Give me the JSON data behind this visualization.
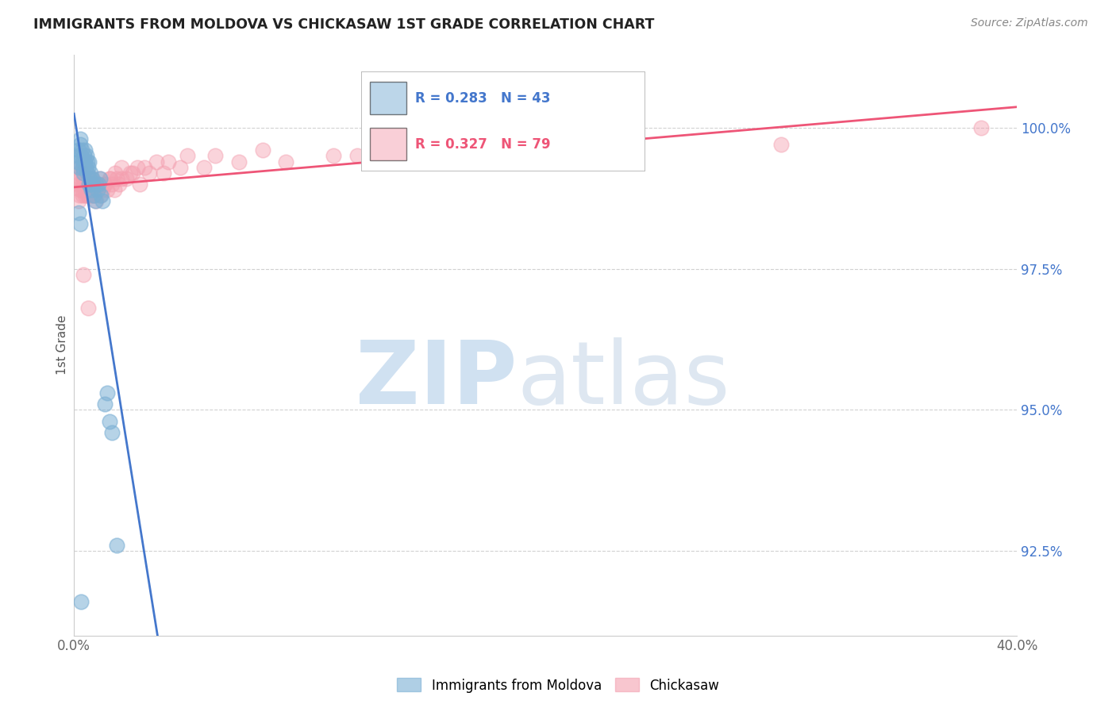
{
  "title": "IMMIGRANTS FROM MOLDOVA VS CHICKASAW 1ST GRADE CORRELATION CHART",
  "source": "Source: ZipAtlas.com",
  "ylabel": "1st Grade",
  "xlim": [
    0.0,
    40.0
  ],
  "ylim": [
    91.0,
    101.3
  ],
  "yticks": [
    92.5,
    95.0,
    97.5,
    100.0
  ],
  "ytick_labels": [
    "92.5%",
    "95.0%",
    "97.5%",
    "100.0%"
  ],
  "xticks": [
    0.0,
    10.0,
    20.0,
    30.0,
    40.0
  ],
  "xtick_labels": [
    "0.0%",
    "",
    "",
    "",
    "40.0%"
  ],
  "blue_R": 0.283,
  "blue_N": 43,
  "pink_R": 0.327,
  "pink_N": 79,
  "blue_color": "#7BAFD4",
  "pink_color": "#F4A0B0",
  "blue_line_color": "#4477CC",
  "pink_line_color": "#EE5577",
  "legend_label_blue": "Immigrants from Moldova",
  "legend_label_pink": "Chickasaw",
  "watermark_zip": "ZIP",
  "watermark_atlas": "atlas",
  "background_color": "#ffffff",
  "blue_x": [
    0.15,
    0.18,
    0.2,
    0.22,
    0.25,
    0.28,
    0.3,
    0.32,
    0.35,
    0.38,
    0.4,
    0.42,
    0.45,
    0.48,
    0.5,
    0.52,
    0.55,
    0.58,
    0.6,
    0.62,
    0.65,
    0.68,
    0.7,
    0.72,
    0.75,
    0.78,
    0.8,
    0.85,
    0.9,
    0.95,
    1.0,
    1.05,
    1.1,
    1.15,
    1.2,
    1.3,
    1.4,
    1.5,
    1.6,
    1.8,
    0.2,
    0.25,
    0.3
  ],
  "blue_y": [
    99.4,
    99.6,
    99.5,
    99.3,
    99.7,
    99.8,
    99.5,
    99.6,
    99.4,
    99.3,
    99.2,
    99.5,
    99.4,
    99.6,
    99.3,
    99.5,
    99.4,
    99.2,
    99.3,
    99.4,
    99.0,
    99.1,
    99.2,
    99.0,
    98.9,
    99.1,
    99.0,
    98.8,
    98.7,
    99.0,
    98.9,
    99.0,
    99.1,
    98.8,
    98.7,
    95.1,
    95.3,
    94.8,
    94.6,
    92.6,
    98.5,
    98.3,
    91.6
  ],
  "pink_x": [
    0.15,
    0.2,
    0.22,
    0.25,
    0.28,
    0.3,
    0.32,
    0.35,
    0.38,
    0.4,
    0.42,
    0.45,
    0.48,
    0.5,
    0.52,
    0.55,
    0.58,
    0.6,
    0.62,
    0.65,
    0.68,
    0.7,
    0.72,
    0.75,
    0.78,
    0.8,
    0.85,
    0.9,
    0.95,
    1.0,
    1.1,
    1.2,
    1.3,
    1.4,
    1.5,
    1.6,
    1.7,
    1.8,
    1.9,
    2.0,
    2.2,
    2.5,
    2.8,
    3.2,
    3.8,
    4.5,
    5.5,
    7.0,
    9.0,
    12.0,
    0.18,
    0.24,
    0.33,
    0.44,
    0.56,
    0.66,
    0.77,
    0.88,
    0.99,
    1.1,
    1.3,
    1.55,
    1.75,
    2.0,
    2.4,
    2.7,
    3.0,
    3.5,
    4.0,
    4.8,
    6.0,
    8.0,
    11.0,
    15.0,
    20.0,
    30.0,
    38.5,
    0.4,
    0.6
  ],
  "pink_y": [
    99.0,
    99.2,
    99.3,
    98.9,
    99.1,
    99.0,
    99.2,
    98.8,
    99.0,
    99.1,
    98.9,
    99.0,
    98.8,
    99.1,
    99.2,
    98.9,
    99.0,
    98.8,
    99.1,
    98.9,
    99.0,
    98.8,
    99.0,
    98.9,
    99.1,
    98.8,
    99.0,
    98.9,
    98.7,
    99.0,
    98.8,
    98.9,
    99.0,
    98.9,
    99.1,
    99.0,
    98.9,
    99.1,
    99.0,
    99.1,
    99.1,
    99.2,
    99.0,
    99.2,
    99.2,
    99.3,
    99.3,
    99.4,
    99.4,
    99.5,
    98.7,
    98.8,
    98.9,
    99.0,
    98.8,
    98.9,
    99.1,
    98.8,
    99.0,
    99.1,
    99.0,
    99.1,
    99.2,
    99.3,
    99.2,
    99.3,
    99.3,
    99.4,
    99.4,
    99.5,
    99.5,
    99.6,
    99.5,
    99.6,
    99.7,
    99.7,
    100.0,
    97.4,
    96.8
  ]
}
